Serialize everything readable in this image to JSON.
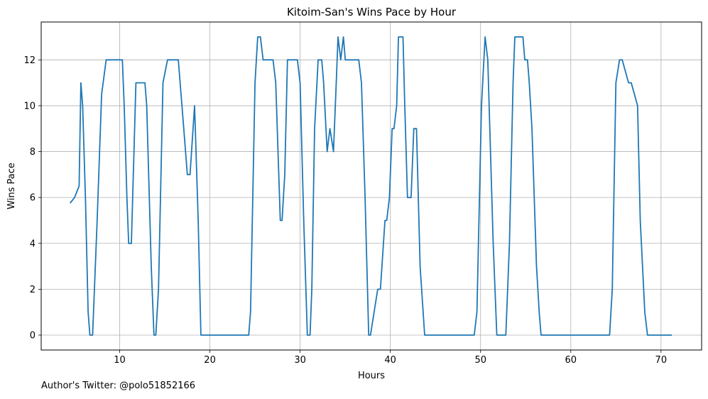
{
  "chart_data": {
    "type": "line",
    "title": "Kitoim-San's Wins Pace by Hour",
    "xlabel": "Hours",
    "ylabel": "Wins Pace",
    "xlim": [
      1.3,
      74.5
    ],
    "ylim": [
      -0.65,
      13.65
    ],
    "xticks": [
      10,
      20,
      30,
      40,
      50,
      60,
      70
    ],
    "yticks": [
      0,
      2,
      4,
      6,
      8,
      10,
      12
    ],
    "grid": true,
    "line_color": "#1f77b4",
    "series": [
      {
        "x": [
          4.5,
          5.0,
          5.5,
          5.7,
          5.9,
          6.2,
          6.5,
          6.7,
          7.0,
          7.5,
          8.0,
          8.5,
          8.7,
          10.3,
          10.5,
          10.8,
          11.0,
          11.3,
          11.8,
          12.0,
          12.8,
          13.0,
          13.5,
          13.8,
          14.0,
          14.3,
          14.8,
          15.3,
          16.5,
          17.0,
          17.3,
          17.5,
          17.8,
          18.3,
          18.7,
          19.0,
          19.3,
          24.3,
          24.5,
          25.0,
          25.3,
          25.6,
          25.9,
          26.2,
          27.0,
          27.3,
          27.8,
          28.0,
          28.3,
          28.6,
          28.9,
          29.7,
          30.0,
          30.4,
          30.8,
          31.1,
          31.3,
          31.6,
          32.0,
          32.4,
          32.6,
          33.0,
          33.3,
          33.7,
          34.0,
          34.2,
          34.5,
          34.8,
          35.0,
          35.2,
          35.5,
          36.5,
          36.8,
          37.2,
          37.6,
          37.8,
          38.6,
          38.9,
          39.4,
          39.6,
          39.9,
          40.2,
          40.4,
          40.7,
          40.9,
          41.4,
          41.6,
          41.9,
          42.3,
          42.6,
          42.9,
          43.3,
          43.8,
          49.3,
          49.6,
          50.1,
          50.5,
          50.8,
          51.4,
          51.8,
          52.0,
          52.8,
          53.2,
          53.6,
          53.8,
          54.7,
          54.9,
          55.2,
          55.4,
          55.7,
          56.2,
          56.5,
          56.7,
          64.3,
          64.6,
          65.0,
          65.4,
          65.7,
          66.4,
          66.7,
          67.4,
          67.7,
          68.2,
          68.5,
          68.8,
          71.2
        ],
        "values": [
          5.75,
          6.0,
          6.5,
          11,
          10,
          6,
          1,
          0,
          0,
          5,
          10.5,
          12,
          12,
          12,
          10,
          6,
          4,
          4,
          11,
          11,
          11,
          10,
          3,
          0,
          0,
          2,
          11,
          12,
          12,
          9.5,
          8,
          7,
          7,
          10,
          5,
          0,
          0,
          0,
          1,
          11,
          13,
          13,
          12,
          12,
          12,
          11,
          5,
          5,
          7,
          12,
          12,
          12,
          11,
          5,
          0,
          0,
          2,
          9,
          12,
          12,
          11,
          8,
          9,
          8,
          11,
          13,
          12,
          13,
          12,
          12,
          12,
          12,
          11,
          6,
          0,
          0,
          2,
          2,
          5,
          5,
          6,
          9,
          9,
          10,
          13,
          13,
          10,
          6,
          6,
          9,
          9,
          3,
          0,
          0,
          1,
          10,
          13,
          12,
          4,
          0,
          0,
          0,
          4,
          11,
          13,
          13,
          12,
          12,
          11,
          9,
          3,
          1,
          0,
          0,
          2,
          11,
          12,
          12,
          11,
          11,
          10,
          5,
          1,
          0,
          0,
          0
        ]
      }
    ]
  },
  "footer": {
    "credit": "Author's Twitter: @polo51852166"
  }
}
